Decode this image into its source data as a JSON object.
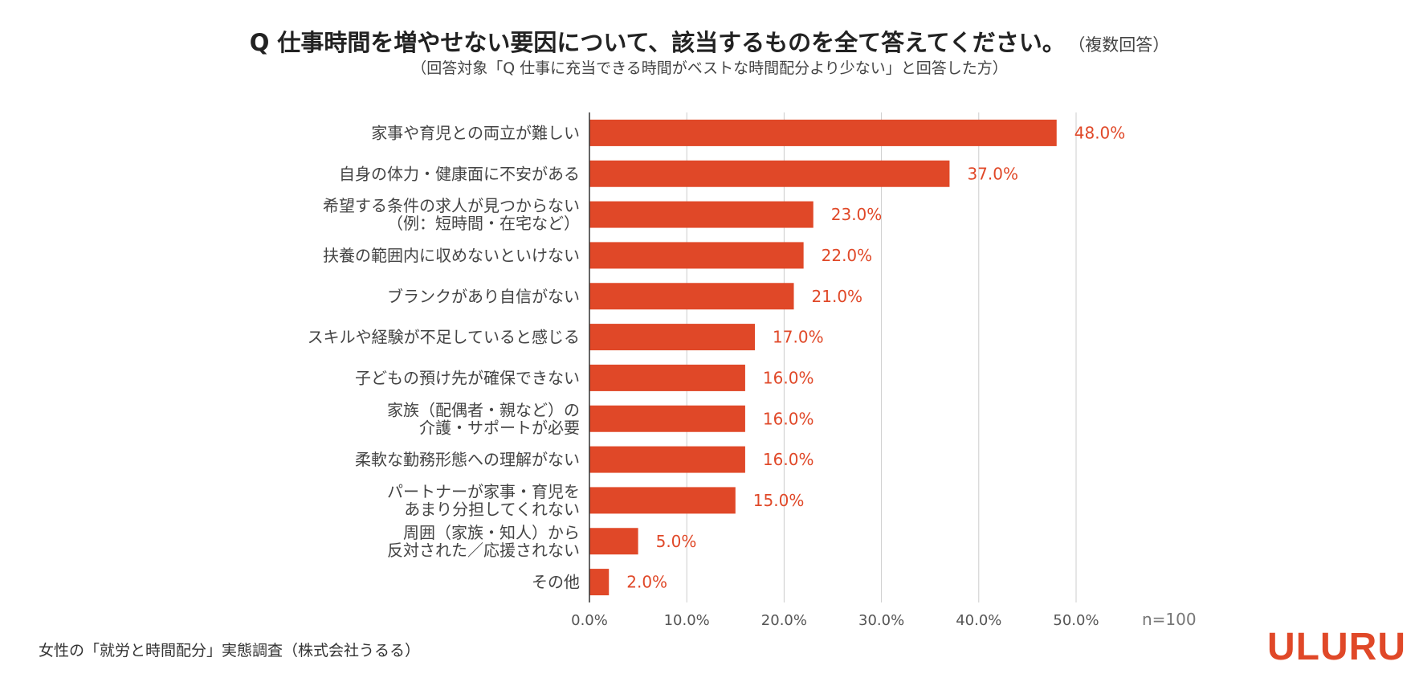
{
  "header": {
    "title": "Q 仕事時間を増やせない要因について、該当するものを全て答えてください。",
    "title_note": "（複数回答）",
    "subtitle": "（回答対象「Q 仕事に充当できる時間がベストな時間配分より少ない」と回答した方）"
  },
  "chart_data": {
    "type": "bar",
    "orientation": "horizontal",
    "categories": [
      [
        "家事や育児との両立が難しい"
      ],
      [
        "自身の体力・健康面に不安がある"
      ],
      [
        "希望する条件の求人が見つからない",
        "（例：短時間・在宅など）"
      ],
      [
        "扶養の範囲内に収めないといけない"
      ],
      [
        "ブランクがあり自信がない"
      ],
      [
        "スキルや経験が不足していると感じる"
      ],
      [
        "子どもの預け先が確保できない"
      ],
      [
        "家族（配偶者・親など）の",
        "介護・サポートが必要"
      ],
      [
        "柔軟な勤務形態への理解がない"
      ],
      [
        "パートナーが家事・育児を",
        "あまり分担してくれない"
      ],
      [
        "周囲（家族・知人）から",
        "反対された／応援されない"
      ],
      [
        "その他"
      ]
    ],
    "values": [
      48.0,
      37.0,
      23.0,
      22.0,
      21.0,
      17.0,
      16.0,
      16.0,
      16.0,
      15.0,
      5.0,
      2.0
    ],
    "value_labels": [
      "48.0%",
      "37.0%",
      "23.0%",
      "22.0%",
      "21.0%",
      "17.0%",
      "16.0%",
      "16.0%",
      "16.0%",
      "15.0%",
      "5.0%",
      "2.0%"
    ],
    "x_ticks": [
      0,
      10,
      20,
      30,
      40,
      50
    ],
    "x_tick_labels": [
      "0.0%",
      "10.0%",
      "20.0%",
      "30.0%",
      "40.0%",
      "50.0%"
    ],
    "xlim": [
      0,
      50
    ],
    "grid": true,
    "sample_note": "n=100",
    "bar_color": "#e04828",
    "label_color": "#e04828"
  },
  "footer": {
    "source": "女性の「就労と時間配分」実態調査（株式会社うるる）",
    "logo": "ULURU"
  }
}
